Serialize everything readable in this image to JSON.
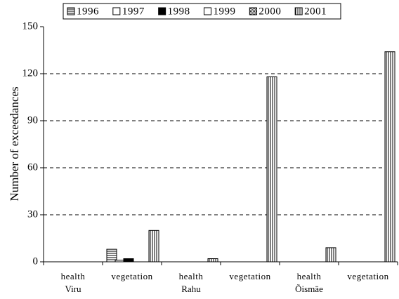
{
  "chart_data": {
    "type": "bar",
    "y_label": "Number of exceedances",
    "categories": [
      "health",
      "vegetation",
      "health",
      "vegetation",
      "health",
      "vegetation"
    ],
    "groups": [
      "Viru",
      "Rahu",
      "Õismäe"
    ],
    "series": [
      {
        "name": "1996",
        "color": "#ffffff",
        "hatch": "horizontal",
        "values": [
          0,
          8,
          0,
          0,
          0,
          0
        ]
      },
      {
        "name": "1997",
        "color": "#ffffff",
        "hatch": "none",
        "values": [
          0,
          1,
          0,
          0,
          0,
          0
        ]
      },
      {
        "name": "1998",
        "color": "#000000",
        "hatch": "none",
        "values": [
          0,
          2,
          0,
          0,
          0,
          0
        ]
      },
      {
        "name": "1999",
        "color": "#ffffff",
        "hatch": "none",
        "values": [
          0,
          0,
          0,
          0,
          0,
          0
        ]
      },
      {
        "name": "2000",
        "color": "#ffffff",
        "hatch": "dense",
        "values": [
          0,
          0,
          0,
          0,
          0,
          0
        ]
      },
      {
        "name": "2001",
        "color": "#ffffff",
        "hatch": "vertical",
        "values": [
          0,
          20,
          2,
          118,
          9,
          134
        ]
      }
    ],
    "ylim": [
      0,
      150
    ],
    "yticks": [
      0,
      30,
      60,
      90,
      120,
      150
    ],
    "grid": true,
    "legend": "top"
  }
}
